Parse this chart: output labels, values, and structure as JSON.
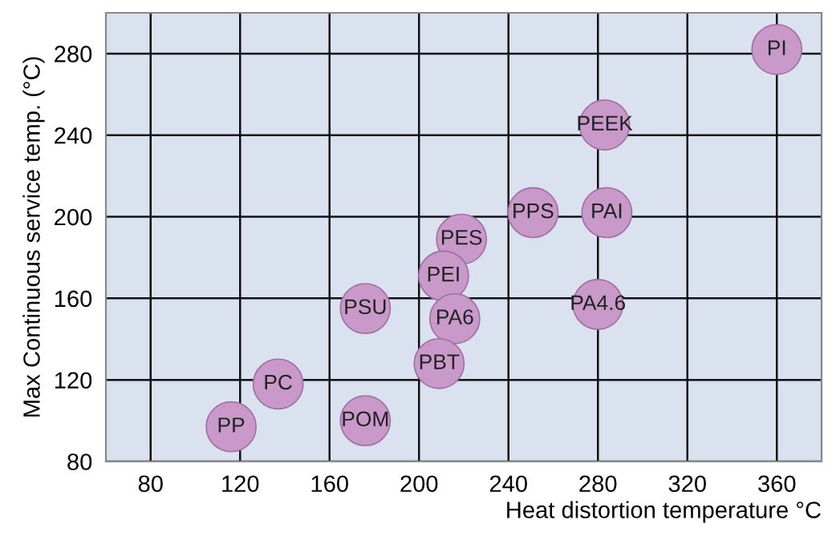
{
  "chart_data": {
    "type": "scatter",
    "xlabel": "Heat distortion temperature °C",
    "ylabel": "Max Continuous service temp. (°C)",
    "x": [
      360,
      283,
      251,
      284,
      219,
      211,
      176,
      216,
      280,
      209,
      137,
      176,
      116
    ],
    "series": [
      {
        "color": "#c99ac9",
        "values": [
          282,
          245,
          202,
          202,
          189,
          171,
          155,
          150,
          157,
          128,
          118,
          100,
          97
        ]
      }
    ],
    "annotations": [
      {
        "text": "PI",
        "x": 360,
        "y": 282
      },
      {
        "text": "PEEK",
        "x": 283,
        "y": 245
      },
      {
        "text": "PPS",
        "x": 251,
        "y": 202
      },
      {
        "text": "PAI",
        "x": 284,
        "y": 202
      },
      {
        "text": "PES",
        "x": 219,
        "y": 189
      },
      {
        "text": "PEI",
        "x": 211,
        "y": 171
      },
      {
        "text": "PSU",
        "x": 176,
        "y": 155
      },
      {
        "text": "PA6",
        "x": 216,
        "y": 150
      },
      {
        "text": "PA4.6",
        "x": 280,
        "y": 157
      },
      {
        "text": "PBT",
        "x": 209,
        "y": 128
      },
      {
        "text": "PC",
        "x": 137,
        "y": 118
      },
      {
        "text": "POM",
        "x": 176,
        "y": 100
      },
      {
        "text": "PP",
        "x": 116,
        "y": 97
      }
    ],
    "xlim": [
      60,
      380
    ],
    "ylim": [
      80,
      300
    ],
    "xticks": [
      80,
      120,
      160,
      200,
      240,
      280,
      320,
      360
    ],
    "yticks": [
      80,
      120,
      160,
      200,
      240,
      280
    ],
    "grid": true,
    "marker": "circle",
    "legend": false
  }
}
